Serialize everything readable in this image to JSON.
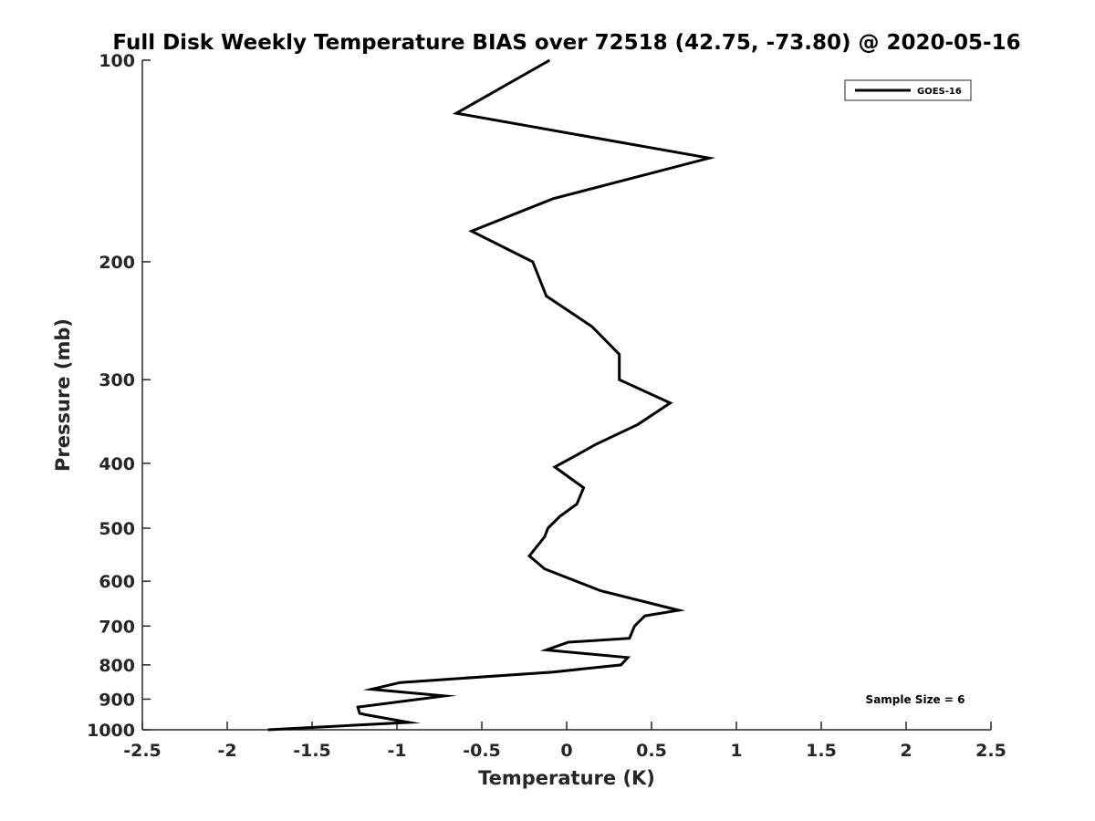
{
  "chart_data": {
    "type": "line",
    "title": "Full Disk Weekly Temperature BIAS over 72518 (42.75, -73.80) @ 2020-05-16",
    "xlabel": "Temperature (K)",
    "ylabel": "Pressure (mb)",
    "xlim": [
      -2.5,
      2.5
    ],
    "ylim": [
      100,
      1000
    ],
    "yscale": "log",
    "yaxis_reversed": true,
    "grid": false,
    "xticks": [
      -2.5,
      -2,
      -1.5,
      -1,
      -0.5,
      0,
      0.5,
      1,
      1.5,
      2,
      2.5
    ],
    "xtick_labels": [
      "-2.5",
      "-2",
      "-1.5",
      "-1",
      "-0.5",
      "0",
      "0.5",
      "1",
      "1.5",
      "2",
      "2.5"
    ],
    "yticks": [
      100,
      200,
      300,
      400,
      500,
      600,
      700,
      800,
      900,
      1000
    ],
    "ytick_labels": [
      "100",
      "200",
      "300",
      "400",
      "500",
      "600",
      "700",
      "800",
      "900",
      "1000"
    ],
    "legend": {
      "position": "top-right",
      "entries": [
        "GOES-16"
      ]
    },
    "annotation": "Sample Size = 6",
    "series": [
      {
        "name": "GOES-16",
        "color": "#000000",
        "x": [
          -0.1,
          -0.65,
          0.84,
          -0.08,
          -0.56,
          -0.2,
          -0.12,
          0.15,
          0.31,
          0.31,
          0.61,
          0.42,
          0.17,
          0.05,
          -0.07,
          0.1,
          0.06,
          -0.04,
          -0.11,
          -0.13,
          -0.22,
          -0.13,
          0.2,
          0.66,
          0.46,
          0.4,
          0.37,
          0.01,
          -0.12,
          0.36,
          0.32,
          -0.08,
          -0.98,
          -1.15,
          -0.72,
          -1.23,
          -1.22,
          -1.18,
          -0.93,
          -1.76
        ],
        "y": [
          100,
          120,
          140,
          161,
          180,
          200,
          225,
          250,
          275,
          300,
          325,
          350,
          375,
          390,
          405,
          435,
          460,
          480,
          500,
          515,
          550,
          575,
          620,
          663,
          676,
          700,
          730,
          740,
          760,
          780,
          800,
          820,
          850,
          870,
          890,
          925,
          945,
          950,
          975,
          1000
        ]
      }
    ]
  }
}
